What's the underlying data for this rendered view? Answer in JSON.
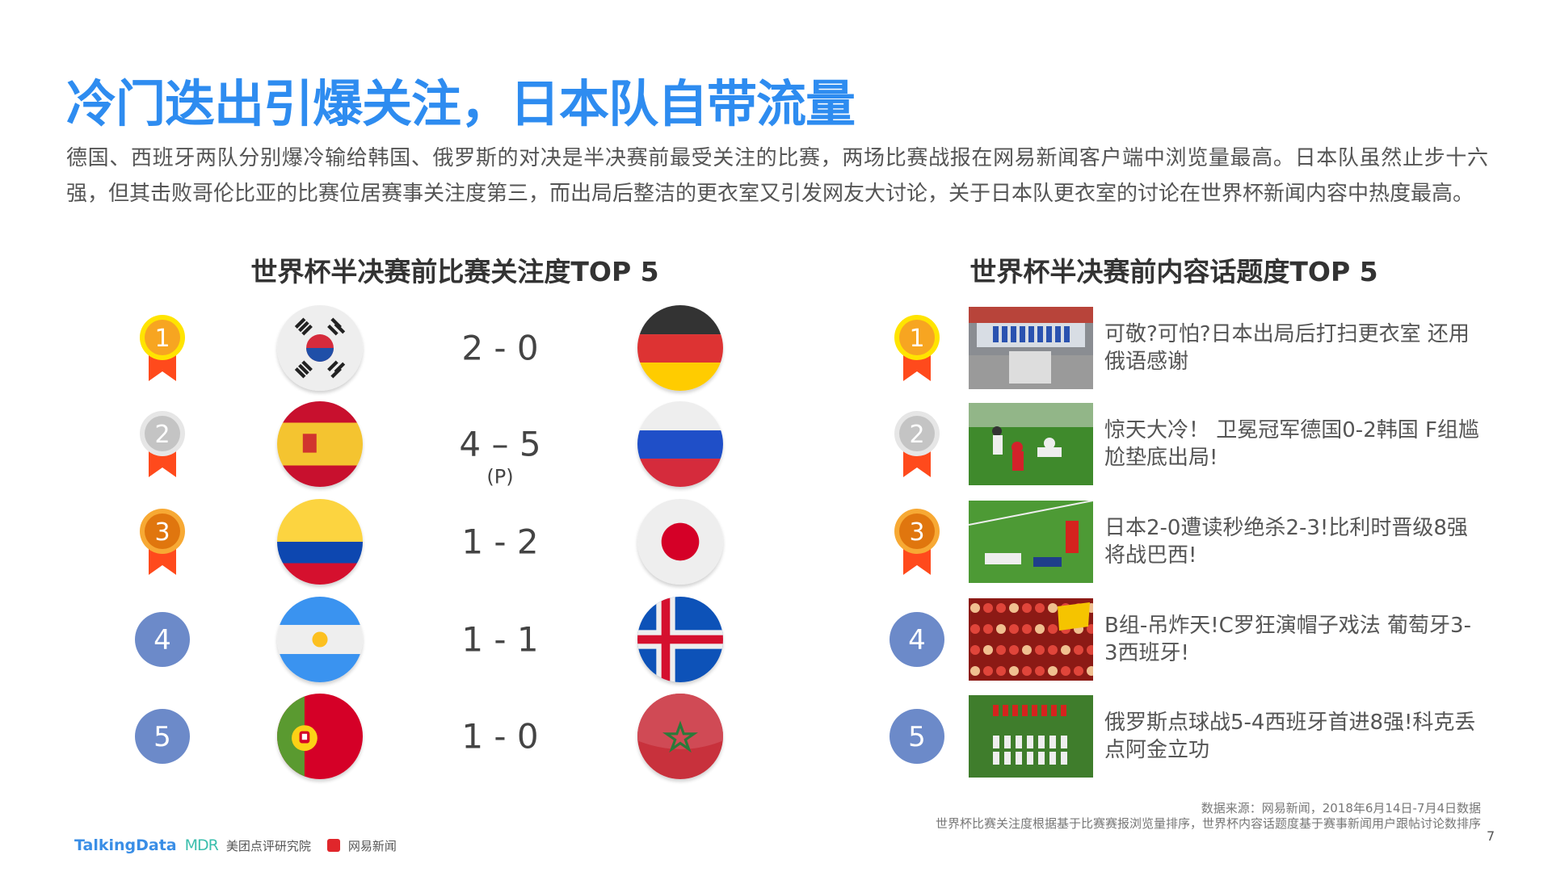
{
  "title": "冷门迭出引爆关注，日本队自带流量",
  "body": "德国、西班牙两队分别爆冷输给韩国、俄罗斯的对决是半决赛前最受关注的比赛，两场比赛战报在网易新闻客户端中浏览量最高。日本队虽然止步十六强，但其击败哥伦比亚的比赛位居赛事关注度第三，而出局后整洁的更衣室又引发网友大讨论，关于日本队更衣室的讨论在世界杯新闻内容中热度最高。",
  "left": {
    "title": "世界杯半决赛前比赛关注度TOP 5",
    "matches": [
      {
        "rank": "1",
        "medal": "gold",
        "home": "korea",
        "away": "germany",
        "score": "2 - 0",
        "note": ""
      },
      {
        "rank": "2",
        "medal": "silver",
        "home": "spain",
        "away": "russia",
        "score": "4 – 5",
        "note": "(P)"
      },
      {
        "rank": "3",
        "medal": "bronze",
        "home": "colombia",
        "away": "japan",
        "score": "1 - 2",
        "note": ""
      },
      {
        "rank": "4",
        "medal": "plain",
        "home": "argentina",
        "away": "iceland",
        "score": "1 - 1",
        "note": ""
      },
      {
        "rank": "5",
        "medal": "plain",
        "home": "portugal",
        "away": "morocco",
        "score": "1 - 0",
        "note": ""
      }
    ]
  },
  "right": {
    "title": "世界杯半决赛前内容话题度TOP 5",
    "topics": [
      {
        "rank": "1",
        "medal": "gold",
        "photo": "locker-room",
        "text": "可敬?可怕?日本出局后打扫更衣室 还用俄语感谢"
      },
      {
        "rank": "2",
        "medal": "silver",
        "photo": "goal-action",
        "text": "惊天大冷！ 卫冕冠军德国0-2韩国 F组尴尬垫底出局!"
      },
      {
        "rank": "3",
        "medal": "bronze",
        "photo": "pitch-fall",
        "text": "日本2-0遭读秒绝杀2-3!比利时晋级8强将战巴西!"
      },
      {
        "rank": "4",
        "medal": "plain",
        "photo": "crowd",
        "text": "B组-吊炸天!C罗狂演帽子戏法 葡萄牙3-3西班牙!"
      },
      {
        "rank": "5",
        "medal": "plain",
        "photo": "celebration",
        "text": "俄罗斯点球战5-4西班牙首进8强!科克丢点阿金立功"
      }
    ]
  },
  "footer": {
    "source": "数据来源：网易新闻，2018年6月14日-7月4日数据",
    "method": "世界杯比赛关注度根据基于比赛赛报浏览量排序，世界杯内容话题度基于赛事新闻用户跟帖讨论数排序",
    "page": "7",
    "logos": {
      "talkingdata": "TalkingData",
      "mdr": "MDR",
      "meituan": "美团点评研究院",
      "netease": "网易新闻"
    }
  },
  "colors": {
    "title": "#2e8cf0",
    "ribbon": "#ff4a1c",
    "plain_badge": "#6c8ac9"
  }
}
